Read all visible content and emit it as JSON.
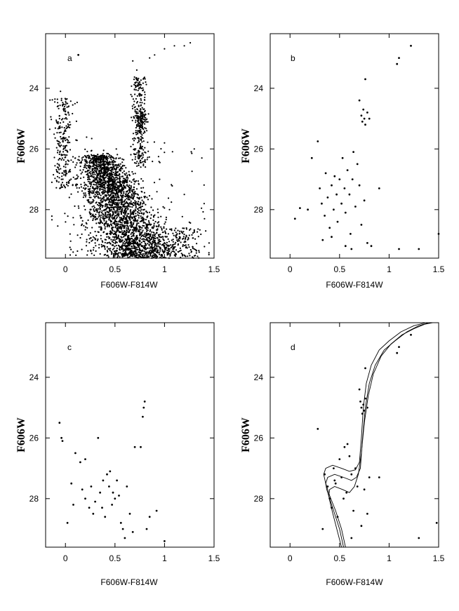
{
  "figure": {
    "shared_xlabel": "F606W-F814W",
    "shared_ylabel": "F606W"
  },
  "chart_data": [
    {
      "id": "a",
      "type": "scatter",
      "panel_label": "a",
      "xlabel": "F606W-F814W",
      "ylabel": "F606W",
      "xlim": [
        -0.2,
        1.5
      ],
      "ylim": [
        29.6,
        22.2
      ],
      "xticks": [
        "0",
        "0.5",
        "1",
        "1.5"
      ],
      "yticks": [
        "24",
        "26",
        "28"
      ],
      "density": "high",
      "points": [
        [
          -0.05,
          24.1
        ],
        [
          -0.04,
          24.4
        ],
        [
          -0.02,
          24.7
        ],
        [
          -0.06,
          25.0
        ],
        [
          -0.01,
          25.3
        ],
        [
          -0.05,
          25.6
        ],
        [
          0.0,
          25.9
        ],
        [
          -0.03,
          26.2
        ],
        [
          0.02,
          24.5
        ],
        [
          0.05,
          25.2
        ],
        [
          -0.08,
          26.6
        ],
        [
          0.01,
          26.8
        ],
        [
          0.1,
          26.3
        ],
        [
          0.15,
          26.7
        ],
        [
          0.2,
          26.5
        ],
        [
          0.25,
          26.9
        ],
        [
          0.3,
          26.4
        ],
        [
          0.35,
          26.8
        ],
        [
          0.68,
          23.1
        ],
        [
          0.72,
          23.4
        ],
        [
          0.75,
          23.8
        ],
        [
          0.7,
          24.2
        ],
        [
          0.74,
          24.6
        ],
        [
          0.76,
          24.9
        ],
        [
          0.78,
          25.1
        ],
        [
          0.73,
          25.4
        ],
        [
          0.8,
          24.3
        ],
        [
          0.85,
          23.0
        ],
        [
          0.9,
          22.9
        ],
        [
          1.0,
          22.7
        ],
        [
          1.1,
          22.6
        ],
        [
          1.2,
          22.6
        ],
        [
          1.26,
          22.5
        ],
        [
          0.78,
          24.0
        ],
        [
          0.74,
          23.9
        ],
        [
          0.2,
          27.3
        ],
        [
          0.25,
          27.8
        ],
        [
          0.3,
          27.5
        ],
        [
          0.35,
          28.0
        ],
        [
          0.4,
          27.7
        ],
        [
          0.45,
          28.2
        ],
        [
          0.5,
          28.4
        ],
        [
          0.55,
          28.6
        ],
        [
          0.6,
          28.8
        ],
        [
          0.65,
          29.0
        ],
        [
          0.7,
          29.1
        ],
        [
          0.8,
          29.2
        ],
        [
          0.9,
          29.3
        ],
        [
          1.0,
          29.4
        ],
        [
          1.1,
          29.4
        ],
        [
          1.2,
          29.5
        ],
        [
          0.15,
          28.2
        ],
        [
          0.22,
          28.6
        ],
        [
          0.28,
          28.9
        ],
        [
          0.33,
          27.1
        ],
        [
          0.38,
          27.4
        ],
        [
          0.42,
          27.9
        ],
        [
          0.48,
          28.1
        ],
        [
          0.52,
          27.6
        ],
        [
          0.58,
          28.3
        ],
        [
          0.62,
          27.9
        ],
        [
          0.3,
          29.1
        ],
        [
          0.4,
          29.3
        ],
        [
          0.5,
          29.0
        ],
        [
          1.2,
          27.5
        ],
        [
          1.3,
          28.7
        ],
        [
          1.4,
          27.8
        ],
        [
          1.45,
          29.1
        ],
        [
          1.3,
          26.0
        ],
        [
          1.05,
          28.0
        ],
        [
          1.15,
          28.8
        ],
        [
          0.95,
          27.0
        ],
        [
          1.0,
          25.8
        ]
      ],
      "single_points": [
        [
          0.13,
          22.9
        ]
      ]
    },
    {
      "id": "b",
      "type": "scatter",
      "panel_label": "b",
      "xlabel": "F606W-F814W",
      "ylabel": "F606W",
      "xlim": [
        -0.2,
        1.5
      ],
      "ylim": [
        29.6,
        22.2
      ],
      "xticks": [
        "0",
        "0.5",
        "1",
        "1.5"
      ],
      "yticks": [
        "24",
        "26",
        "28"
      ],
      "points": [
        [
          0.05,
          28.3
        ],
        [
          0.1,
          27.95
        ],
        [
          0.18,
          28.0
        ],
        [
          0.22,
          26.3
        ],
        [
          0.28,
          25.75
        ],
        [
          0.3,
          27.3
        ],
        [
          0.32,
          27.8
        ],
        [
          0.35,
          28.2
        ],
        [
          0.36,
          26.8
        ],
        [
          0.38,
          27.6
        ],
        [
          0.4,
          28.6
        ],
        [
          0.42,
          27.2
        ],
        [
          0.44,
          28.0
        ],
        [
          0.45,
          26.9
        ],
        [
          0.47,
          27.5
        ],
        [
          0.48,
          28.4
        ],
        [
          0.5,
          27.0
        ],
        [
          0.52,
          27.8
        ],
        [
          0.53,
          26.3
        ],
        [
          0.55,
          27.3
        ],
        [
          0.56,
          28.1
        ],
        [
          0.58,
          26.7
        ],
        [
          0.6,
          27.5
        ],
        [
          0.61,
          28.8
        ],
        [
          0.63,
          27.0
        ],
        [
          0.64,
          26.1
        ],
        [
          0.66,
          27.9
        ],
        [
          0.68,
          26.5
        ],
        [
          0.7,
          24.4
        ],
        [
          0.72,
          24.9
        ],
        [
          0.73,
          25.1
        ],
        [
          0.74,
          24.7
        ],
        [
          0.75,
          25.0
        ],
        [
          0.76,
          25.2
        ],
        [
          0.78,
          24.8
        ],
        [
          0.76,
          23.7
        ],
        [
          0.8,
          25.0
        ],
        [
          0.7,
          27.2
        ],
        [
          0.72,
          28.5
        ],
        [
          0.75,
          27.7
        ],
        [
          0.78,
          29.1
        ],
        [
          0.82,
          29.2
        ],
        [
          0.9,
          27.3
        ],
        [
          1.08,
          23.2
        ],
        [
          1.1,
          23.0
        ],
        [
          1.22,
          22.6
        ],
        [
          1.3,
          29.3
        ],
        [
          1.5,
          28.8
        ],
        [
          0.33,
          29.0
        ],
        [
          0.42,
          28.9
        ],
        [
          0.56,
          29.2
        ],
        [
          0.62,
          29.3
        ],
        [
          1.1,
          29.3
        ]
      ]
    },
    {
      "id": "c",
      "type": "scatter",
      "panel_label": "c",
      "xlabel": "F606W-F814W",
      "ylabel": "F606W",
      "xlim": [
        -0.2,
        1.5
      ],
      "ylim": [
        29.6,
        22.2
      ],
      "xticks": [
        "0",
        "0.5",
        "1",
        "1.5"
      ],
      "yticks": [
        "24",
        "26",
        "28"
      ],
      "points": [
        [
          -0.06,
          25.5
        ],
        [
          -0.04,
          26.0
        ],
        [
          -0.03,
          26.1
        ],
        [
          0.02,
          28.8
        ],
        [
          0.06,
          27.5
        ],
        [
          0.08,
          28.2
        ],
        [
          0.1,
          26.5
        ],
        [
          0.15,
          26.8
        ],
        [
          0.17,
          27.7
        ],
        [
          0.2,
          28.0
        ],
        [
          0.2,
          26.7
        ],
        [
          0.24,
          28.3
        ],
        [
          0.26,
          27.6
        ],
        [
          0.28,
          28.5
        ],
        [
          0.3,
          28.1
        ],
        [
          0.33,
          26.0
        ],
        [
          0.35,
          27.8
        ],
        [
          0.37,
          28.3
        ],
        [
          0.38,
          27.4
        ],
        [
          0.4,
          28.6
        ],
        [
          0.42,
          27.2
        ],
        [
          0.44,
          27.6
        ],
        [
          0.45,
          27.1
        ],
        [
          0.47,
          28.2
        ],
        [
          0.48,
          27.8
        ],
        [
          0.5,
          28.0
        ],
        [
          0.52,
          27.4
        ],
        [
          0.54,
          27.9
        ],
        [
          0.56,
          28.8
        ],
        [
          0.58,
          29.0
        ],
        [
          0.6,
          29.3
        ],
        [
          0.62,
          27.6
        ],
        [
          0.65,
          28.5
        ],
        [
          0.68,
          29.1
        ],
        [
          0.7,
          26.3
        ],
        [
          0.76,
          26.3
        ],
        [
          0.78,
          25.3
        ],
        [
          0.79,
          25.0
        ],
        [
          0.8,
          24.8
        ],
        [
          0.82,
          29.0
        ],
        [
          0.85,
          28.6
        ],
        [
          0.92,
          28.4
        ],
        [
          1.0,
          29.4
        ]
      ]
    },
    {
      "id": "d",
      "type": "scatter",
      "panel_label": "d",
      "xlabel": "F606W-F814W",
      "ylabel": "F606W",
      "xlim": [
        -0.2,
        1.5
      ],
      "ylim": [
        29.6,
        22.2
      ],
      "xticks": [
        "0",
        "0.5",
        "1",
        "1.5"
      ],
      "yticks": [
        "24",
        "26",
        "28"
      ],
      "points": [
        [
          0.28,
          25.7
        ],
        [
          0.35,
          27.2
        ],
        [
          0.38,
          27.6
        ],
        [
          0.4,
          28.0
        ],
        [
          0.42,
          28.3
        ],
        [
          0.44,
          27.0
        ],
        [
          0.46,
          27.5
        ],
        [
          0.48,
          28.6
        ],
        [
          0.5,
          26.7
        ],
        [
          0.52,
          27.3
        ],
        [
          0.54,
          28.0
        ],
        [
          0.55,
          26.3
        ],
        [
          0.57,
          27.8
        ],
        [
          0.6,
          26.6
        ],
        [
          0.62,
          27.2
        ],
        [
          0.64,
          28.4
        ],
        [
          0.66,
          27.0
        ],
        [
          0.68,
          27.6
        ],
        [
          0.7,
          24.4
        ],
        [
          0.71,
          24.8
        ],
        [
          0.72,
          25.0
        ],
        [
          0.73,
          25.2
        ],
        [
          0.74,
          24.9
        ],
        [
          0.75,
          25.1
        ],
        [
          0.76,
          24.7
        ],
        [
          0.78,
          25.0
        ],
        [
          0.76,
          23.7
        ],
        [
          0.8,
          27.3
        ],
        [
          0.78,
          28.5
        ],
        [
          0.75,
          27.7
        ],
        [
          0.9,
          27.3
        ],
        [
          1.08,
          23.2
        ],
        [
          1.1,
          23.0
        ],
        [
          1.22,
          22.6
        ],
        [
          1.3,
          29.3
        ],
        [
          1.48,
          28.8
        ],
        [
          0.33,
          29.0
        ],
        [
          0.62,
          29.3
        ],
        [
          0.72,
          28.9
        ],
        [
          0.58,
          26.2
        ],
        [
          0.45,
          27.4
        ]
      ],
      "isochrones": [
        {
          "x": [
            0.56,
            0.52,
            0.46,
            0.4,
            0.36,
            0.34,
            0.36,
            0.43,
            0.52,
            0.6,
            0.66,
            0.7,
            0.72,
            0.74,
            0.77,
            0.82,
            0.9,
            1.0,
            1.12,
            1.25,
            1.37
          ],
          "y": [
            29.6,
            29.0,
            28.4,
            27.9,
            27.5,
            27.2,
            27.0,
            26.9,
            27.0,
            27.1,
            27.05,
            26.8,
            26.0,
            25.0,
            24.2,
            23.6,
            23.1,
            22.8,
            22.5,
            22.3,
            22.2
          ]
        },
        {
          "x": [
            0.54,
            0.5,
            0.45,
            0.4,
            0.37,
            0.36,
            0.38,
            0.45,
            0.54,
            0.62,
            0.67,
            0.71,
            0.73,
            0.76,
            0.8,
            0.86,
            0.95,
            1.06,
            1.18,
            1.3,
            1.4
          ],
          "y": [
            29.6,
            29.0,
            28.5,
            28.0,
            27.7,
            27.5,
            27.3,
            27.2,
            27.3,
            27.4,
            27.3,
            27.0,
            26.1,
            25.0,
            24.2,
            23.6,
            23.1,
            22.8,
            22.5,
            22.3,
            22.2
          ]
        },
        {
          "x": [
            0.52,
            0.48,
            0.44,
            0.41,
            0.39,
            0.4,
            0.45,
            0.53,
            0.6,
            0.65,
            0.69,
            0.72,
            0.75,
            0.79,
            0.84,
            0.92,
            1.02,
            1.13,
            1.25,
            1.36,
            1.44
          ],
          "y": [
            29.6,
            29.1,
            28.6,
            28.2,
            27.9,
            27.7,
            27.6,
            27.7,
            27.8,
            27.6,
            27.2,
            26.5,
            25.5,
            24.6,
            23.9,
            23.3,
            22.9,
            22.6,
            22.4,
            22.25,
            22.2
          ]
        }
      ]
    }
  ]
}
